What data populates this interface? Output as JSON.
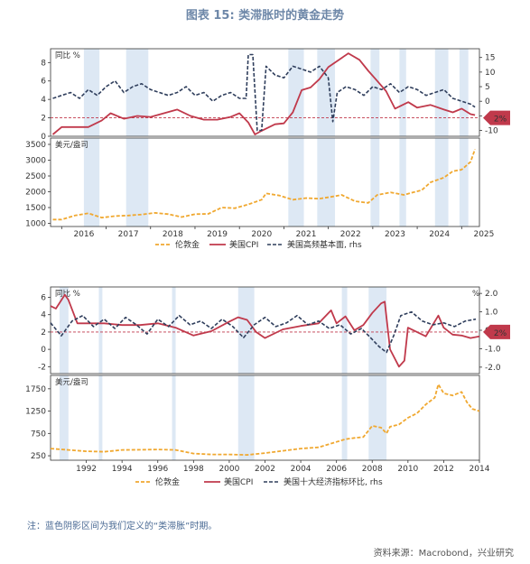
{
  "title": "图表 15: 类滞胀时的黄金走势",
  "note": "注：蓝色阴影区间为我们定义的“类滞胀”时期。",
  "source": "资料来源：Macrobond，兴业研究",
  "colors": {
    "gold": "#f0a830",
    "cpi": "#c0394b",
    "dash": "#2f3e5c",
    "shade": "#dde8f4",
    "ref": "#c0394b",
    "axis": "#333333"
  },
  "chart_data": [
    {
      "type": "line",
      "id": "top",
      "upper": {
        "ylabel": "同比 %",
        "yticks": [
          0,
          2,
          4,
          6,
          8
        ],
        "ylim": [
          0,
          9.5
        ],
        "rhs_ticks": [
          -10,
          -5,
          0,
          5,
          10,
          15
        ],
        "rhs_ylim": [
          -12,
          18
        ],
        "ref_label": "2%",
        "ref_value": 2
      },
      "lower": {
        "ylabel": "美元/盎司",
        "yticks": [
          1000,
          1500,
          2000,
          2500,
          3000,
          3500
        ],
        "ylim": [
          900,
          3700
        ]
      },
      "xlim": [
        2015.75,
        2025.4
      ],
      "xticks": [
        "2016",
        "2017",
        "2018",
        "2019",
        "2020",
        "2021",
        "2022",
        "2023",
        "2024",
        "2025"
      ],
      "shade_periods": [
        [
          2016.5,
          2016.85
        ],
        [
          2017.45,
          2017.95
        ],
        [
          2021.1,
          2021.45
        ],
        [
          2021.75,
          2022.15
        ],
        [
          2022.95,
          2023.15
        ],
        [
          2023.6,
          2023.75
        ],
        [
          2024.4,
          2024.7
        ],
        [
          2024.95,
          2025.15
        ]
      ],
      "legend": [
        "伦敦金",
        "美国CPI",
        "美国高频基本面, rhs"
      ],
      "series": [
        {
          "name": "伦敦金",
          "axis": "lower",
          "x": [
            2015.8,
            2016.0,
            2016.3,
            2016.6,
            2016.9,
            2017.2,
            2017.5,
            2017.8,
            2018.1,
            2018.4,
            2018.7,
            2019.0,
            2019.3,
            2019.6,
            2019.9,
            2020.2,
            2020.5,
            2020.6,
            2020.9,
            2021.2,
            2021.5,
            2021.8,
            2022.1,
            2022.3,
            2022.6,
            2022.9,
            2023.1,
            2023.4,
            2023.7,
            2023.9,
            2024.1,
            2024.3,
            2024.6,
            2024.8,
            2025.0,
            2025.2,
            2025.3
          ],
          "values": [
            1120,
            1120,
            1250,
            1320,
            1180,
            1230,
            1250,
            1280,
            1330,
            1290,
            1200,
            1290,
            1300,
            1500,
            1480,
            1600,
            1750,
            1950,
            1880,
            1750,
            1800,
            1780,
            1850,
            1900,
            1700,
            1650,
            1900,
            1980,
            1900,
            1980,
            2050,
            2300,
            2450,
            2650,
            2700,
            2950,
            3350
          ]
        },
        {
          "name": "美国CPI",
          "axis": "upper",
          "x": [
            2015.8,
            2016.0,
            2016.3,
            2016.6,
            2016.9,
            2017.1,
            2017.4,
            2017.7,
            2018.0,
            2018.3,
            2018.6,
            2018.9,
            2019.2,
            2019.5,
            2019.8,
            2020.0,
            2020.2,
            2020.35,
            2020.5,
            2020.8,
            2021.0,
            2021.2,
            2021.4,
            2021.6,
            2021.8,
            2022.0,
            2022.3,
            2022.45,
            2022.7,
            2022.9,
            2023.1,
            2023.3,
            2023.5,
            2023.8,
            2024.0,
            2024.3,
            2024.6,
            2024.8,
            2025.0,
            2025.2,
            2025.3
          ],
          "values": [
            0.2,
            1.0,
            1.0,
            1.0,
            1.7,
            2.5,
            1.9,
            2.2,
            2.1,
            2.5,
            2.9,
            2.2,
            1.8,
            1.8,
            2.1,
            2.5,
            1.5,
            0.2,
            0.6,
            1.3,
            1.4,
            2.6,
            5.0,
            5.3,
            6.2,
            7.5,
            8.5,
            9.0,
            8.3,
            7.1,
            6.0,
            4.9,
            3.0,
            3.7,
            3.1,
            3.4,
            2.9,
            2.6,
            3.0,
            2.4,
            2.3
          ]
        },
        {
          "name": "美国高频基本面, rhs",
          "axis": "upper_rhs",
          "x": [
            2015.8,
            2016.0,
            2016.2,
            2016.4,
            2016.6,
            2016.8,
            2017.0,
            2017.2,
            2017.4,
            2017.6,
            2017.8,
            2018.0,
            2018.2,
            2018.4,
            2018.6,
            2018.8,
            2019.0,
            2019.2,
            2019.4,
            2019.6,
            2019.8,
            2020.0,
            2020.15,
            2020.2,
            2020.3,
            2020.4,
            2020.5,
            2020.6,
            2020.8,
            2021.0,
            2021.2,
            2021.4,
            2021.6,
            2021.8,
            2022.0,
            2022.1,
            2022.2,
            2022.4,
            2022.6,
            2022.8,
            2023.0,
            2023.2,
            2023.4,
            2023.6,
            2023.8,
            2024.0,
            2024.2,
            2024.4,
            2024.6,
            2024.8,
            2025.0,
            2025.2,
            2025.3
          ],
          "values": [
            1,
            2,
            3,
            1,
            4,
            2,
            5,
            7,
            3,
            5,
            6,
            4,
            3,
            2,
            3,
            5,
            2,
            3,
            0,
            2,
            3,
            1,
            1,
            16,
            16,
            -10,
            -10,
            12,
            9,
            8,
            12,
            11,
            10,
            12,
            8,
            -7,
            3,
            5,
            4,
            2,
            5,
            4,
            6,
            3,
            5,
            4,
            2,
            3,
            4,
            1,
            0,
            -1,
            -2
          ]
        }
      ]
    },
    {
      "type": "line",
      "id": "bottom",
      "upper": {
        "ylabel": "同比 %",
        "yticks": [
          -2,
          0,
          2,
          4,
          6
        ],
        "ylim": [
          -2.8,
          7.2
        ],
        "rhs_label": "%",
        "rhs_ticks": [
          "-2.0",
          "-1.0",
          "0.0",
          "1.0",
          "2.0"
        ],
        "rhs_ylim": [
          -2.35,
          2.35
        ],
        "ref_label": "2%",
        "ref_value": 2
      },
      "lower": {
        "ylabel": "美元/盎司",
        "yticks": [
          250,
          750,
          1250,
          1750
        ],
        "ylim": [
          150,
          2050
        ]
      },
      "xlim": [
        1990.0,
        2014.0
      ],
      "xticks": [
        "1992",
        "1994",
        "1996",
        "1998",
        "2000",
        "2002",
        "2004",
        "2006",
        "2008",
        "2010",
        "2012",
        "2014"
      ],
      "shade_periods": [
        [
          1990.5,
          1991.0
        ],
        [
          1992.7,
          1992.9
        ],
        [
          1996.8,
          1997.0
        ],
        [
          2000.5,
          2001.4
        ],
        [
          2006.3,
          2006.6
        ],
        [
          2007.8,
          2008.8
        ]
      ],
      "legend": [
        "伦敦金",
        "美国CPI",
        "美国十大经济指标环比, rhs"
      ],
      "series": [
        {
          "name": "伦敦金",
          "axis": "lower",
          "x": [
            1990.0,
            1991.0,
            1992.0,
            1993.0,
            1994.0,
            1995.0,
            1996.0,
            1997.0,
            1998.0,
            1999.0,
            2000.0,
            2001.0,
            2002.0,
            2003.0,
            2004.0,
            2005.0,
            2006.0,
            2006.5,
            2007.0,
            2007.5,
            2008.0,
            2008.5,
            2008.8,
            2009.0,
            2009.5,
            2010.0,
            2010.5,
            2011.0,
            2011.5,
            2011.7,
            2012.0,
            2012.5,
            2013.0,
            2013.3,
            2013.6,
            2014.0
          ],
          "values": [
            410,
            380,
            350,
            340,
            380,
            385,
            390,
            380,
            300,
            280,
            280,
            270,
            310,
            360,
            410,
            440,
            560,
            620,
            650,
            670,
            920,
            880,
            750,
            900,
            950,
            1100,
            1200,
            1400,
            1550,
            1850,
            1650,
            1600,
            1680,
            1450,
            1300,
            1250
          ]
        },
        {
          "name": "美国CPI",
          "axis": "upper",
          "x": [
            1990.0,
            1990.3,
            1990.8,
            1991.0,
            1991.5,
            1992.0,
            1993.0,
            1994.0,
            1995.0,
            1996.0,
            1997.0,
            1998.0,
            1999.0,
            2000.0,
            2000.5,
            2001.0,
            2001.5,
            2002.0,
            2003.0,
            2004.0,
            2005.0,
            2005.7,
            2006.0,
            2006.5,
            2007.0,
            2007.5,
            2008.0,
            2008.5,
            2008.7,
            2009.0,
            2009.5,
            2009.8,
            2010.0,
            2011.0,
            2011.7,
            2012.0,
            2012.5,
            2013.0,
            2013.5,
            2014.0
          ],
          "values": [
            5.0,
            4.7,
            6.3,
            5.7,
            3.0,
            3.0,
            3.0,
            2.8,
            2.8,
            3.0,
            2.5,
            1.6,
            2.1,
            3.2,
            3.7,
            3.4,
            2.0,
            1.3,
            2.3,
            2.7,
            3.0,
            4.5,
            3.0,
            3.8,
            2.2,
            2.8,
            4.2,
            5.3,
            5.5,
            0.0,
            -2.0,
            -1.3,
            2.5,
            1.5,
            3.9,
            2.5,
            1.7,
            1.6,
            1.3,
            1.5
          ]
        },
        {
          "name": "美国十大经济指标环比, rhs",
          "axis": "upper_rhs",
          "x": [
            1990.0,
            1990.6,
            1991.2,
            1991.8,
            1992.4,
            1993.0,
            1993.6,
            1994.2,
            1994.8,
            1995.4,
            1996.0,
            1996.6,
            1997.2,
            1997.8,
            1998.4,
            1999.0,
            1999.6,
            2000.2,
            2000.8,
            2001.4,
            2002.0,
            2002.6,
            2003.2,
            2003.8,
            2004.4,
            2005.0,
            2005.6,
            2006.2,
            2006.8,
            2007.4,
            2008.0,
            2008.4,
            2008.8,
            2009.2,
            2009.6,
            2010.2,
            2010.8,
            2011.4,
            2012.0,
            2012.6,
            2013.2,
            2013.8
          ],
          "values": [
            0.4,
            -0.3,
            0.5,
            0.8,
            0.2,
            0.6,
            0.1,
            0.7,
            0.3,
            -0.2,
            0.6,
            0.2,
            0.8,
            0.3,
            0.5,
            0.1,
            0.6,
            0.2,
            -0.4,
            0.3,
            0.7,
            0.2,
            0.4,
            0.8,
            0.3,
            0.5,
            0.1,
            0.3,
            -0.2,
            0.1,
            -0.5,
            -0.9,
            -1.2,
            -0.3,
            0.8,
            1.0,
            0.5,
            0.3,
            0.4,
            0.2,
            0.5,
            0.6
          ]
        }
      ]
    }
  ]
}
